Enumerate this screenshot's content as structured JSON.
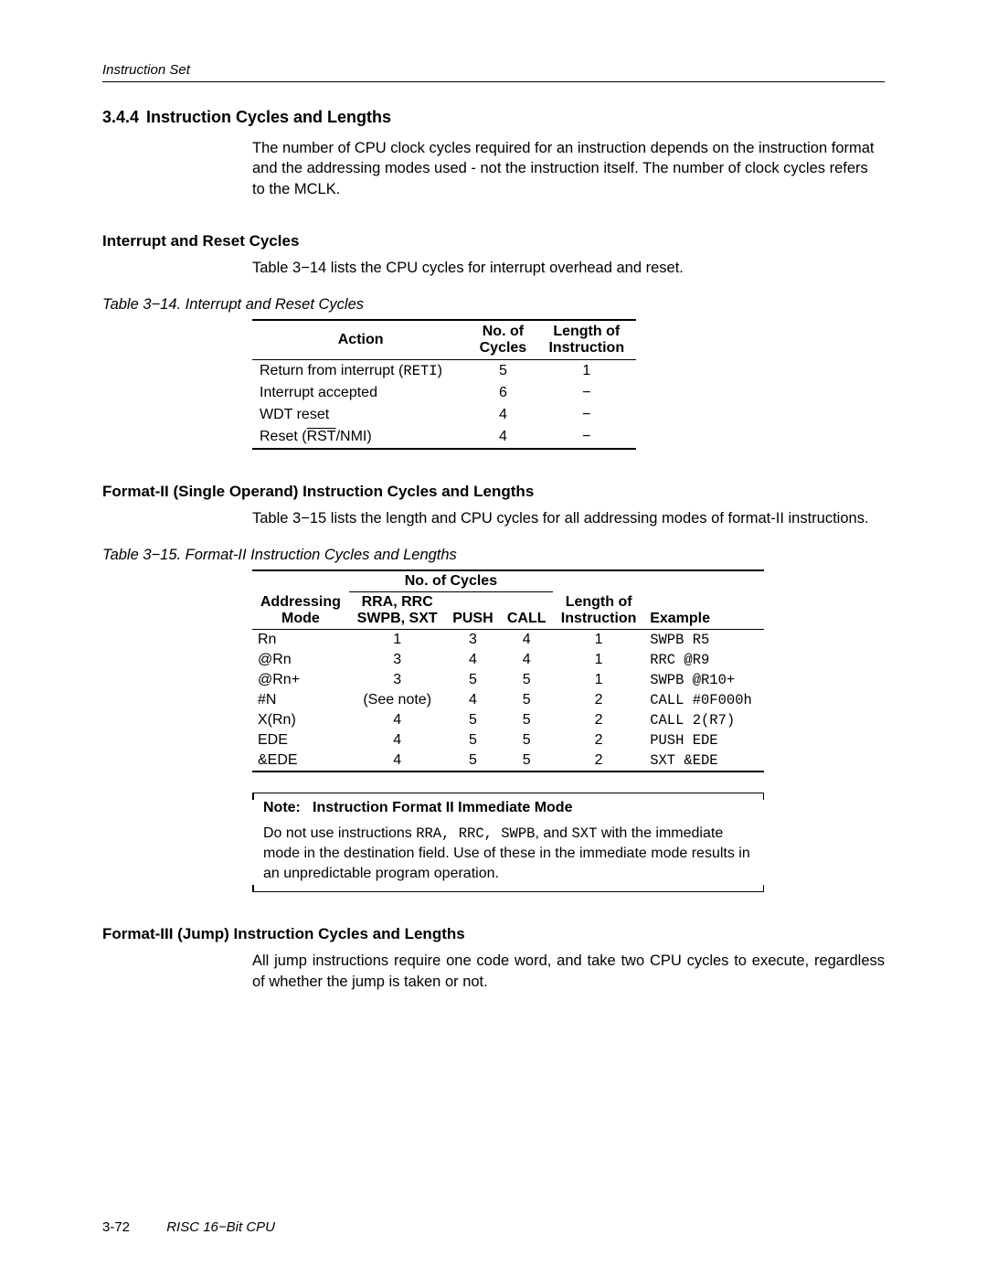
{
  "running_header": "Instruction Set",
  "section_number": "3.4.4",
  "section_title": "Instruction Cycles and Lengths",
  "intro_para": "The number of CPU clock cycles required for an instruction depends on the instruction format and the addressing modes used - not the instruction itself. The number of clock cycles refers to the MCLK.",
  "sub1": {
    "heading": "Interrupt and Reset Cycles",
    "para": "Table 3−14 lists the CPU cycles for interrupt overhead and reset.",
    "caption": "Table 3−14. Interrupt and Reset Cycles",
    "headers": {
      "action": "Action",
      "cycles_l1": "No. of",
      "cycles_l2": "Cycles",
      "len_l1": "Length of",
      "len_l2": "Instruction"
    },
    "rows": [
      {
        "action_pre": "Return from interrupt (",
        "action_code": "RETI",
        "action_post": ")",
        "cycles": "5",
        "len": "1"
      },
      {
        "action_pre": "Interrupt accepted",
        "action_code": "",
        "action_post": "",
        "cycles": "6",
        "len": "−"
      },
      {
        "action_pre": "WDT reset",
        "action_code": "",
        "action_post": "",
        "cycles": "4",
        "len": "−"
      },
      {
        "action_pre": "Reset (",
        "action_over": "RST",
        "action_post2": "/NMI)",
        "cycles": "4",
        "len": "−"
      }
    ]
  },
  "sub2": {
    "heading": "Format-II (Single Operand) Instruction Cycles and Lengths",
    "para": "Table 3−15 lists the length and CPU cycles for all addressing modes of format-II instructions.",
    "caption": "Table 3−15. Format-II Instruction Cycles and Lengths",
    "group_header": "No. of Cycles",
    "headers": {
      "mode_l1": "Addressing",
      "mode_l2": "Mode",
      "col2_l1": "RRA, RRC",
      "col2_l2": "SWPB, SXT",
      "push": "PUSH",
      "call": "CALL",
      "len_l1": "Length of",
      "len_l2": "Instruction",
      "example": "Example"
    },
    "rows": [
      {
        "mode": "Rn",
        "c2": "1",
        "push": "3",
        "call": "4",
        "len": "1",
        "ex": "SWPB R5"
      },
      {
        "mode": "@Rn",
        "c2": "3",
        "push": "4",
        "call": "4",
        "len": "1",
        "ex": "RRC @R9"
      },
      {
        "mode": "@Rn+",
        "c2": "3",
        "push": "5",
        "call": "5",
        "len": "1",
        "ex": "SWPB @R10+"
      },
      {
        "mode": "#N",
        "c2": "(See note)",
        "push": "4",
        "call": "5",
        "len": "2",
        "ex": "CALL #0F000h"
      },
      {
        "mode": "X(Rn)",
        "c2": "4",
        "push": "5",
        "call": "5",
        "len": "2",
        "ex": "CALL 2(R7)"
      },
      {
        "mode": "EDE",
        "c2": "4",
        "push": "5",
        "call": "5",
        "len": "2",
        "ex": "PUSH EDE"
      },
      {
        "mode": "&EDE",
        "c2": "4",
        "push": "5",
        "call": "5",
        "len": "2",
        "ex": "SXT &EDE"
      }
    ],
    "note": {
      "label": "Note:",
      "title": "Instruction Format II Immediate Mode",
      "pre": "Do not use instructions ",
      "codes": "RRA, RRC, SWPB",
      "mid": ", and ",
      "code2": "SXT",
      "post": " with the immediate mode in the destination field. Use of these in the immediate mode results in an unpredictable program operation."
    }
  },
  "sub3": {
    "heading": "Format-III (Jump) Instruction Cycles and Lengths",
    "para": "All jump instructions require one code word, and take two CPU cycles to execute, regardless of whether the jump is taken or not."
  },
  "footer": {
    "page": "3-72",
    "title": "RISC 16−Bit CPU"
  }
}
